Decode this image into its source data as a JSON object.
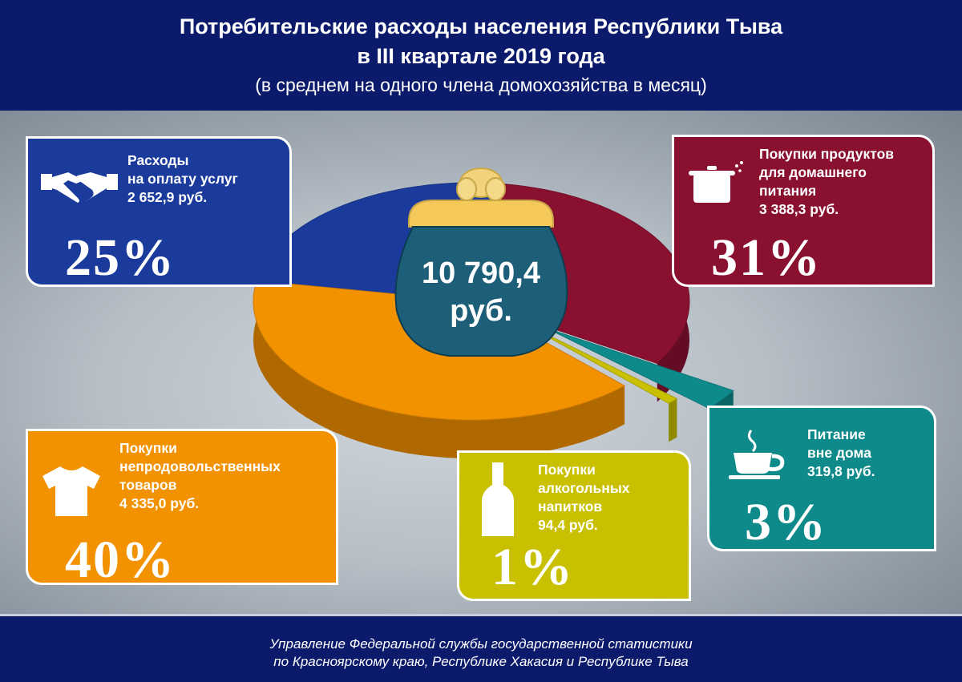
{
  "header": {
    "title_line1": "Потребительские расходы населения Республики Тыва",
    "title_line2": "в III квартале 2019 года",
    "subtitle": "(в среднем на одного члена домохозяйства в месяц)"
  },
  "chart_data": {
    "type": "pie",
    "title": "Потребительские расходы населения Республики Тыва в III квартале 2019 года",
    "total": "10 790,4",
    "total_unit": "руб.",
    "slices": [
      {
        "id": "services",
        "name": "Расходы на оплату услуг",
        "value": 2652.9,
        "value_label": "2 652,9 руб.",
        "percent": 25,
        "percent_label": "25%",
        "color": "#1a3a9c"
      },
      {
        "id": "food",
        "name": "Покупки продуктов для домашнего питания",
        "value": 3388.3,
        "value_label": "3 388,3 руб.",
        "percent": 31,
        "percent_label": "31%",
        "color": "#8a1030"
      },
      {
        "id": "outside",
        "name": "Питание вне дома",
        "value": 319.8,
        "value_label": "319,8 руб.",
        "percent": 3,
        "percent_label": "3%",
        "color": "#0f8a8a"
      },
      {
        "id": "alcohol",
        "name": "Покупки алкогольных напитков",
        "value": 94.4,
        "value_label": "94,4 руб.",
        "percent": 1,
        "percent_label": "1%",
        "color": "#c8c000"
      },
      {
        "id": "goods",
        "name": "Покупки непродовольственных товаров",
        "value": 4335.0,
        "value_label": "4 335,0 руб.",
        "percent": 40,
        "percent_label": "40%",
        "color": "#f39200"
      }
    ]
  },
  "cards": {
    "services": {
      "label": "Расходы\nна оплату услуг\n2 652,9 руб.",
      "pct": "25%",
      "icon": "handshake-icon"
    },
    "food": {
      "label": "Покупки продуктов\nдля домашнего\nпитания\n3 388,3 руб.",
      "pct": "31%",
      "icon": "cooking-pot-icon"
    },
    "goods": {
      "label": "Покупки\nнепродовольственных\nтоваров\n4 335,0 руб.",
      "pct": "40%",
      "icon": "tshirt-icon"
    },
    "alcohol": {
      "label": "Покупки\nалкогольных\nнапитков\n94,4 руб.",
      "pct": "1%",
      "icon": "bottle-icon"
    },
    "outside": {
      "label": "Питание\nвне дома\n319,8 руб.",
      "pct": "3%",
      "icon": "coffee-cup-icon"
    }
  },
  "purse": {
    "amount": "10 790,4",
    "unit": "руб.",
    "icon": "purse-icon"
  },
  "footer": {
    "line1": "Управление Федеральной службы государственной статистики",
    "line2": "по Красноярскому краю, Республике Хакасия и Республике Тыва"
  },
  "colors": {
    "header_bg": "#0b1a6b",
    "services": "#1a3a9c",
    "food": "#8a1030",
    "goods": "#f39200",
    "alcohol": "#c8c000",
    "outside": "#0f8a8a",
    "purse": "#1d5f78"
  }
}
